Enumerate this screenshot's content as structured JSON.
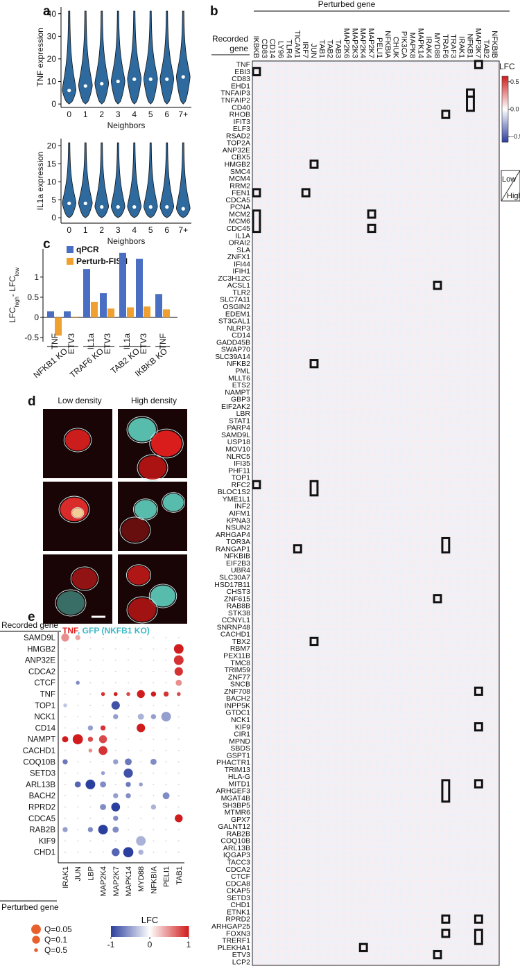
{
  "panel_a": {
    "letter": "a",
    "plots": [
      {
        "y_label": "TNF expression",
        "x_label": "Neighbors",
        "categories": [
          "0",
          "1",
          "2",
          "3",
          "4",
          "5",
          "6",
          "7+"
        ],
        "medians": [
          6,
          8,
          9,
          10,
          11,
          11,
          11,
          12
        ],
        "ylim": [
          -1.5,
          43
        ],
        "yticks": [
          0,
          10,
          20,
          30,
          40
        ],
        "color": "#2f6a9e"
      },
      {
        "y_label": "IL1a expression",
        "x_label": "Neighbors",
        "categories": [
          "0",
          "1",
          "2",
          "3",
          "4",
          "5",
          "6",
          "7+"
        ],
        "medians": [
          4,
          4,
          3,
          3,
          3,
          3,
          3,
          2.5
        ],
        "ylim": [
          -1.5,
          22
        ],
        "yticks": [
          0,
          5,
          10,
          15,
          20
        ],
        "color": "#2f6a9e"
      }
    ]
  },
  "panel_b": {
    "letter": "b",
    "title": "Perturbed gene",
    "row_title": [
      "Recorded",
      "gene"
    ],
    "perturbed_genes": [
      "IKBKB",
      "CD83",
      "CD14",
      "LY96",
      "TLR4",
      "TICAM1",
      "IRF7",
      "JUN",
      "TAB1",
      "TAB2",
      "TAB3",
      "MAP2K6",
      "MAP2K3",
      "MAP2K4",
      "MAP2K7",
      "PELI1",
      "NFKBIA",
      "CHUK",
      "PIK3CA",
      "MAPK8",
      "MAPK14",
      "IRAK4",
      "MYD88",
      "TRAF6",
      "TRAF3",
      "IRAK1",
      "NFKB1",
      "MAP3K7",
      "TAB2",
      "NFKBIB"
    ],
    "recorded_genes": [
      "TNF",
      "EBI3",
      "CD83",
      "EHD1",
      "TNFAIP3",
      "TNFAIP2",
      "CD40",
      "RHOB",
      "IFIT3",
      "ELF3",
      "RSAD2",
      "TOP2A",
      "ANP32E",
      "CBX5",
      "HMGB2",
      "SMC4",
      "MCM4",
      "RRM2",
      "FEN1",
      "CDCA5",
      "PCNA",
      "MCM2",
      "MCM6",
      "CDC45",
      "IL1A",
      "ORAI2",
      "SLA",
      "ZNFX1",
      "IFI44",
      "IFIH1",
      "ZC3H12C",
      "ACSL1",
      "TLR2",
      "SLC7A11",
      "OSGIN2",
      "EDEM1",
      "ST3GAL1",
      "NLRP3",
      "CD14",
      "GADD45B",
      "SWAP70",
      "SLC39A14",
      "NFKB2",
      "PML",
      "MLLT6",
      "ETS2",
      "NAMPT",
      "GBP3",
      "EIF2AK2",
      "LBR",
      "STAT1",
      "PARP4",
      "SAMD9L",
      "USP18",
      "MOV10",
      "NLRC5",
      "IFI35",
      "PHF11",
      "TOP1",
      "RFC2",
      "BLOC1S2",
      "YME1L1",
      "INF2",
      "AIFM1",
      "KPNA3",
      "NSUN2",
      "ARHGAP4",
      "TOR3A",
      "RANGAP1",
      "NFKBIB",
      "EIF2B3",
      "UBR4",
      "SLC30A7",
      "HSD17B11",
      "CHST3",
      "ZNF615",
      "RAB8B",
      "STK38",
      "CCNYL1",
      "SNRNP48",
      "CACHD1",
      "TBX2",
      "RBM7",
      "PEX11B",
      "TMC8",
      "TRIM59",
      "ZNF77",
      "SNCB",
      "ZNF708",
      "BACH2",
      "INPP5K",
      "GTDC1",
      "NCK1",
      "KIF9",
      "CIR1",
      "MPND",
      "SBDS",
      "GSPT1",
      "PHACTR1",
      "TRIM13",
      "HLA-G",
      "MITD1",
      "ARHGEF3",
      "MGAT4B",
      "SH3BP5",
      "MTMR6",
      "GPX7",
      "GALNT12",
      "RAB2B",
      "COQ10B",
      "ARL13B",
      "IQGAP3",
      "TACC3",
      "CDCA2",
      "CTCF",
      "CDCA8",
      "CKAP5",
      "SETD3",
      "CHD1",
      "ETNK1",
      "RPRD2",
      "ARHGAP25",
      "FOXN3",
      "TRERF1",
      "PLEKHA1",
      "ETV3",
      "LCP2"
    ],
    "highlights": [
      [
        0,
        27,
        1
      ],
      [
        1,
        0,
        1
      ],
      [
        4,
        26,
        1
      ],
      [
        5,
        26,
        2
      ],
      [
        7,
        23,
        1
      ],
      [
        14,
        7,
        1
      ],
      [
        18,
        0,
        1
      ],
      [
        18,
        6,
        1
      ],
      [
        21,
        14,
        1
      ],
      [
        21,
        0,
        3
      ],
      [
        23,
        14,
        1
      ],
      [
        31,
        22,
        1
      ],
      [
        42,
        7,
        1
      ],
      [
        59,
        0,
        1
      ],
      [
        59,
        7,
        2
      ],
      [
        68,
        5,
        1
      ],
      [
        67,
        23,
        2
      ],
      [
        75,
        22,
        1
      ],
      [
        81,
        7,
        1
      ],
      [
        88,
        27,
        1
      ],
      [
        93,
        27,
        1
      ],
      [
        101,
        27,
        1
      ],
      [
        101,
        23,
        3
      ],
      [
        120,
        23,
        1
      ],
      [
        120,
        27,
        1
      ],
      [
        122,
        23,
        1
      ],
      [
        122,
        27,
        2
      ],
      [
        124,
        13,
        1
      ],
      [
        125,
        22,
        1
      ]
    ],
    "colorbar": {
      "title": "LFC",
      "ticks": [
        {
          "value": 0.5,
          "label": "0.5"
        },
        {
          "value": 0,
          "label": "0.0"
        },
        {
          "value": -0.5,
          "label": "−0.5"
        }
      ],
      "lim": [
        -0.6,
        0.6
      ],
      "colors": [
        "#2b3f9e",
        "#ffffff",
        "#d01c1c"
      ]
    },
    "triangle_legend": [
      "Low",
      "High"
    ]
  },
  "panel_c": {
    "letter": "c",
    "y_label": [
      "LFC",
      "high",
      "- LFC",
      "low"
    ],
    "groups": [
      {
        "name": "NFKB1 KO",
        "categories": [
          "TNF",
          "ETV3"
        ]
      },
      {
        "name": "TRAF6 KO",
        "categories": [
          "IL1a",
          "ETV3"
        ]
      },
      {
        "name": "TAB2 KO",
        "categories": [
          "IL1a",
          "ETV3"
        ]
      },
      {
        "name": "IKBKB KO",
        "categories": [
          "TNF"
        ]
      }
    ],
    "series": [
      {
        "name": "qPCR",
        "color": "#4a6fc2",
        "values": [
          0.15,
          0.15,
          1.2,
          0.6,
          1.6,
          1.45,
          0.58
        ]
      },
      {
        "name": "Perturb-FISH",
        "color": "#f0a030",
        "values": [
          -0.45,
          0.02,
          0.38,
          0.22,
          0.25,
          0.27,
          0.2
        ]
      }
    ],
    "ylim": [
      -0.6,
      1.7
    ],
    "yticks": [
      {
        "value": 1,
        "label": "1"
      },
      {
        "value": 0.5,
        "label": "0.5"
      },
      0,
      {
        "value": -0.5,
        "label": "-0.5"
      }
    ]
  },
  "panel_d": {
    "letter": "d",
    "columns": [
      "Low density",
      "High density"
    ],
    "caption": [
      "TNF",
      ", GFP (NKFB1 KO)"
    ]
  },
  "panel_e": {
    "letter": "e",
    "row_title": "Recorded gene",
    "col_title": "Perturbed gene",
    "rows": [
      "SAMD9L",
      "HMGB2",
      "ANP32E",
      "CDCA2",
      "CTCF",
      "TNF",
      "TOP1",
      "NCK1",
      "CD14",
      "NAMPT",
      "CACHD1",
      "COQ10B",
      "SETD3",
      "ARL13B",
      "BACH2",
      "RPRD2",
      "CDCA5",
      "RAB2B",
      "KIF9",
      "CHD1"
    ],
    "columns": [
      "IRAK1",
      "JUN",
      "LBP",
      "MAP2K4",
      "MAP2K7",
      "MAPK14",
      "MYD88",
      "NFKBIA",
      "PELI1",
      "TAB1"
    ],
    "dots": [
      [
        0,
        0,
        0.5,
        0.1
      ],
      [
        0,
        1,
        0.4,
        0.3
      ],
      [
        1,
        9,
        1,
        0.05
      ],
      [
        2,
        9,
        0.9,
        0.05
      ],
      [
        3,
        9,
        0.9,
        0.08
      ],
      [
        4,
        1,
        -0.6,
        0.5
      ],
      [
        4,
        9,
        0.5,
        0.2
      ],
      [
        5,
        3,
        0.9,
        0.5
      ],
      [
        5,
        4,
        1,
        0.5
      ],
      [
        5,
        5,
        0.8,
        0.5
      ],
      [
        5,
        6,
        1,
        0.1
      ],
      [
        5,
        7,
        1,
        0.3
      ],
      [
        5,
        8,
        0.9,
        0.3
      ],
      [
        5,
        9,
        0.8,
        0.5
      ],
      [
        6,
        0,
        -0.3,
        0.5
      ],
      [
        6,
        4,
        -0.9,
        0.08
      ],
      [
        7,
        4,
        -0.5,
        0.3
      ],
      [
        7,
        6,
        -0.4,
        0.2
      ],
      [
        7,
        7,
        -0.5,
        0.3
      ],
      [
        7,
        8,
        -0.5,
        0.05
      ],
      [
        8,
        2,
        -0.5,
        0.3
      ],
      [
        8,
        3,
        0.9,
        0.3
      ],
      [
        8,
        6,
        1,
        0.08
      ],
      [
        9,
        0,
        1,
        0.2
      ],
      [
        9,
        1,
        1,
        0.04
      ],
      [
        9,
        2,
        0.8,
        0.3
      ],
      [
        9,
        3,
        0.8,
        0.1
      ],
      [
        10,
        2,
        0.5,
        0.5
      ],
      [
        10,
        3,
        0.9,
        0.07
      ],
      [
        11,
        0,
        -0.7,
        0.3
      ],
      [
        11,
        4,
        -0.5,
        0.3
      ],
      [
        11,
        5,
        -0.7,
        0.15
      ],
      [
        11,
        7,
        -0.6,
        0.2
      ],
      [
        12,
        3,
        -0.5,
        0.5
      ],
      [
        12,
        5,
        -0.9,
        0.06
      ],
      [
        13,
        1,
        -0.8,
        0.2
      ],
      [
        13,
        2,
        -1,
        0.05
      ],
      [
        13,
        3,
        -0.6,
        0.2
      ],
      [
        13,
        5,
        -0.7,
        0.3
      ],
      [
        13,
        6,
        -0.5,
        0.5
      ],
      [
        14,
        4,
        -0.5,
        0.3
      ],
      [
        14,
        5,
        -0.6,
        0.3
      ],
      [
        14,
        8,
        -0.6,
        0.15
      ],
      [
        15,
        3,
        -0.6,
        0.2
      ],
      [
        15,
        4,
        -1,
        0.07
      ],
      [
        15,
        7,
        -0.4,
        0.3
      ],
      [
        16,
        4,
        -0.6,
        0.3
      ],
      [
        16,
        9,
        1,
        0.1
      ],
      [
        17,
        0,
        -0.5,
        0.3
      ],
      [
        17,
        2,
        -0.6,
        0.3
      ],
      [
        17,
        3,
        -1,
        0.05
      ],
      [
        17,
        4,
        -0.6,
        0.2
      ],
      [
        18,
        6,
        -0.4,
        0.05
      ],
      [
        19,
        4,
        -0.8,
        0.1
      ],
      [
        19,
        5,
        -1,
        0.04
      ],
      [
        19,
        6,
        -0.4,
        0.3
      ]
    ],
    "size_legend": [
      {
        "value": 0.05,
        "label": "Q=0.05"
      },
      {
        "value": 0.1,
        "label": "Q=0.1"
      },
      {
        "value": 0.5,
        "label": "Q=0.5"
      }
    ],
    "colorbar": {
      "title": "LFC",
      "ticks": [
        {
          "value": -1,
          "label": "-1"
        },
        0,
        1
      ],
      "lim": [
        -1,
        1
      ],
      "colors": [
        "#2b3f9e",
        "#ffffff",
        "#d01c1c"
      ]
    }
  }
}
